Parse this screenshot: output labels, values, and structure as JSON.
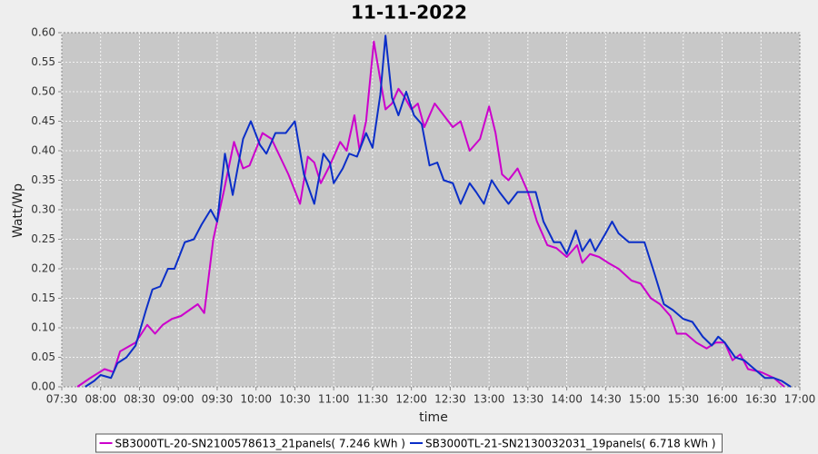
{
  "chart_data": {
    "type": "line",
    "title": "11-11-2022",
    "x_label": "time",
    "y_label": "Watt/Wp",
    "xlim": [
      "07:30",
      "17:00"
    ],
    "xticks": [
      "07:30",
      "08:00",
      "08:30",
      "09:00",
      "09:30",
      "10:00",
      "10:30",
      "11:00",
      "11:30",
      "12:00",
      "12:30",
      "13:00",
      "13:30",
      "14:00",
      "14:30",
      "15:00",
      "15:30",
      "16:00",
      "16:30",
      "17:00"
    ],
    "ylim": [
      0,
      0.6
    ],
    "yticks": [
      {
        "value": 0,
        "label": "0.00"
      },
      0.05,
      {
        "value": 0.1,
        "label": "0.10"
      },
      0.15,
      {
        "value": 0.2,
        "label": "0.20"
      },
      0.25,
      {
        "value": 0.3,
        "label": "0.30"
      },
      0.35,
      {
        "value": 0.4,
        "label": "0.40"
      },
      0.45,
      {
        "value": 0.5,
        "label": "0.50"
      },
      0.55,
      {
        "value": 0.6,
        "label": "0.60"
      }
    ],
    "grid": true,
    "legend": "bottom",
    "series": [
      {
        "name": "SB3000TL-20-SN2100578613_21panels( 7.246 kWh )",
        "color": "#cc00cc",
        "x": [
          "07:42",
          "07:52",
          "08:03",
          "08:10",
          "08:15",
          "08:27",
          "08:36",
          "08:42",
          "08:48",
          "08:55",
          "09:02",
          "09:15",
          "09:20",
          "09:27",
          "09:35",
          "09:43",
          "09:50",
          "09:55",
          "10:05",
          "10:12",
          "10:25",
          "10:34",
          "10:40",
          "10:45",
          "10:50",
          "10:57",
          "11:05",
          "11:10",
          "11:16",
          "11:20",
          "11:25",
          "11:31",
          "11:36",
          "11:40",
          "11:45",
          "11:50",
          "11:55",
          "12:00",
          "12:05",
          "12:10",
          "12:18",
          "12:25",
          "12:32",
          "12:38",
          "12:45",
          "12:53",
          "13:00",
          "13:05",
          "13:10",
          "13:15",
          "13:22",
          "13:30",
          "13:37",
          "13:45",
          "13:52",
          "14:00",
          "14:08",
          "14:12",
          "14:18",
          "14:25",
          "14:32",
          "14:40",
          "14:50",
          "14:57",
          "15:05",
          "15:12",
          "15:20",
          "15:25",
          "15:32",
          "15:40",
          "15:48",
          "15:55",
          "16:02",
          "16:08",
          "16:14",
          "16:20",
          "16:30",
          "16:40",
          "16:48"
        ],
        "values": [
          0.0,
          0.015,
          0.03,
          0.025,
          0.06,
          0.075,
          0.105,
          0.09,
          0.105,
          0.115,
          0.12,
          0.14,
          0.125,
          0.25,
          0.33,
          0.415,
          0.37,
          0.375,
          0.43,
          0.42,
          0.36,
          0.31,
          0.39,
          0.38,
          0.345,
          0.375,
          0.415,
          0.4,
          0.46,
          0.4,
          0.45,
          0.585,
          0.52,
          0.47,
          0.48,
          0.505,
          0.49,
          0.47,
          0.48,
          0.44,
          0.48,
          0.46,
          0.44,
          0.45,
          0.4,
          0.42,
          0.475,
          0.43,
          0.36,
          0.35,
          0.37,
          0.33,
          0.28,
          0.24,
          0.235,
          0.22,
          0.24,
          0.21,
          0.225,
          0.22,
          0.21,
          0.2,
          0.18,
          0.175,
          0.15,
          0.14,
          0.12,
          0.09,
          0.09,
          0.075,
          0.065,
          0.075,
          0.075,
          0.045,
          0.055,
          0.03,
          0.025,
          0.015,
          0.0
        ]
      },
      {
        "name": "SB3000TL-21-SN2130032031_19panels( 6.718 kWh )",
        "color": "#0a2ec8",
        "x": [
          "07:48",
          "07:55",
          "08:00",
          "08:08",
          "08:13",
          "08:20",
          "08:27",
          "08:35",
          "08:40",
          "08:46",
          "08:52",
          "08:57",
          "09:05",
          "09:12",
          "09:18",
          "09:25",
          "09:30",
          "09:36",
          "09:42",
          "09:50",
          "09:56",
          "10:03",
          "10:08",
          "10:15",
          "10:23",
          "10:30",
          "10:37",
          "10:45",
          "10:52",
          "10:57",
          "11:00",
          "11:07",
          "11:12",
          "11:18",
          "11:25",
          "11:30",
          "11:36",
          "11:40",
          "11:45",
          "11:50",
          "11:56",
          "12:02",
          "12:08",
          "12:14",
          "12:20",
          "12:25",
          "12:32",
          "12:38",
          "12:45",
          "12:50",
          "12:56",
          "13:02",
          "13:08",
          "13:15",
          "13:22",
          "13:30",
          "13:36",
          "13:42",
          "13:50",
          "13:55",
          "14:00",
          "14:07",
          "14:12",
          "14:18",
          "14:22",
          "14:30",
          "14:35",
          "14:40",
          "14:48",
          "14:55",
          "15:00",
          "15:08",
          "15:15",
          "15:22",
          "15:30",
          "15:37",
          "15:45",
          "15:52",
          "15:57",
          "16:02",
          "16:10",
          "16:17",
          "16:25",
          "16:33",
          "16:40",
          "16:46",
          "16:53"
        ],
        "values": [
          0.0,
          0.01,
          0.02,
          0.015,
          0.04,
          0.05,
          0.07,
          0.13,
          0.165,
          0.17,
          0.2,
          0.2,
          0.245,
          0.25,
          0.275,
          0.3,
          0.28,
          0.395,
          0.325,
          0.42,
          0.45,
          0.41,
          0.395,
          0.43,
          0.43,
          0.45,
          0.36,
          0.31,
          0.395,
          0.38,
          0.345,
          0.37,
          0.395,
          0.39,
          0.43,
          0.405,
          0.495,
          0.595,
          0.49,
          0.46,
          0.5,
          0.46,
          0.445,
          0.375,
          0.38,
          0.35,
          0.345,
          0.31,
          0.345,
          0.33,
          0.31,
          0.35,
          0.33,
          0.31,
          0.33,
          0.33,
          0.33,
          0.28,
          0.245,
          0.245,
          0.225,
          0.265,
          0.23,
          0.25,
          0.23,
          0.26,
          0.28,
          0.26,
          0.245,
          0.245,
          0.245,
          0.19,
          0.14,
          0.13,
          0.115,
          0.11,
          0.085,
          0.07,
          0.085,
          0.075,
          0.05,
          0.045,
          0.03,
          0.015,
          0.015,
          0.01,
          0.0
        ]
      }
    ]
  }
}
